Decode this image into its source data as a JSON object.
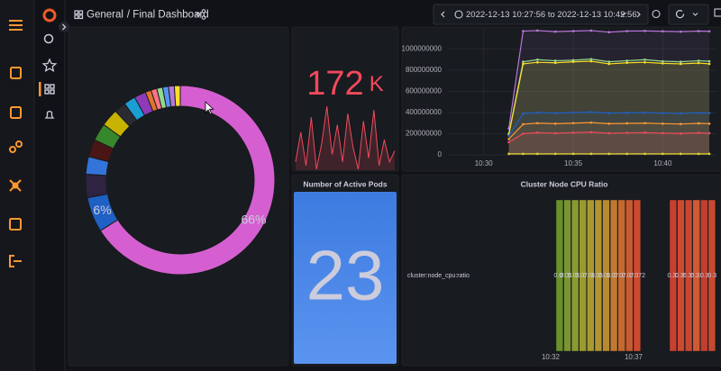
{
  "header": {
    "folder": "General",
    "title": "/ Final Dashboard",
    "time_range": "2022-12-13 10:27:56 to 2022-12-13 10:42:56"
  },
  "donut": {
    "slices": [
      {
        "value": 66,
        "label": "66%",
        "color": "#d55fd0"
      },
      {
        "value": 6,
        "label": "6%",
        "color": "#1f60c4"
      },
      {
        "value": 4,
        "color": "#2e2340"
      },
      {
        "value": 3,
        "color": "#3274d9"
      },
      {
        "value": 3,
        "color": "#4a1515"
      },
      {
        "value": 3,
        "color": "#37872d"
      },
      {
        "value": 3,
        "color": "#c8b400"
      },
      {
        "value": 2,
        "color": "#2a2a30"
      },
      {
        "value": 2,
        "color": "#1a9ed5"
      },
      {
        "value": 2,
        "color": "#8f3bb8"
      },
      {
        "value": 1,
        "color": "#e0752d"
      },
      {
        "value": 1,
        "color": "#ff7383"
      },
      {
        "value": 1,
        "color": "#96d98d"
      },
      {
        "value": 1,
        "color": "#5794f2"
      },
      {
        "value": 1,
        "color": "#b877d9"
      },
      {
        "value": 1,
        "color": "#fade2a"
      }
    ]
  },
  "stat": {
    "value": 172,
    "unit": "K",
    "color": "#f2495c",
    "sparkline": [
      20,
      60,
      15,
      80,
      10,
      45,
      95,
      30,
      70,
      20,
      85,
      40,
      10,
      75,
      25,
      90,
      15,
      50,
      20,
      35
    ]
  },
  "timeseries": {
    "xlim": [
      628,
      643
    ],
    "ylim": [
      0,
      1200000000
    ],
    "yticks": [
      0,
      200000000,
      400000000,
      600000000,
      800000000,
      1000000000
    ],
    "xticks": [
      {
        "value": 630,
        "label": "10:30"
      },
      {
        "value": 635,
        "label": "10:35"
      },
      {
        "value": 640,
        "label": "10:40"
      }
    ],
    "x": [
      631.4,
      632.2,
      633,
      634,
      635,
      636,
      637,
      638,
      639,
      640,
      641,
      642,
      642.6
    ],
    "series": [
      {
        "color": "#b877d9",
        "values": [
          250000000,
          1170000000,
          1175000000,
          1165000000,
          1170000000,
          1175000000,
          1160000000,
          1170000000,
          1172000000,
          1168000000,
          1165000000,
          1170000000,
          1168000000
        ]
      },
      {
        "color": "#96d98d",
        "values": [
          200000000,
          880000000,
          900000000,
          890000000,
          895000000,
          905000000,
          880000000,
          890000000,
          900000000,
          885000000,
          880000000,
          890000000,
          885000000
        ]
      },
      {
        "color": "#fade2a",
        "values": [
          190000000,
          860000000,
          875000000,
          870000000,
          880000000,
          885000000,
          860000000,
          870000000,
          875000000,
          865000000,
          860000000,
          868000000,
          860000000
        ]
      },
      {
        "color": "#1f60c4",
        "values": [
          180000000,
          390000000,
          400000000,
          395000000,
          400000000,
          405000000,
          395000000,
          398000000,
          400000000,
          395000000,
          392000000,
          398000000,
          395000000
        ]
      },
      {
        "color": "#ff9830",
        "values": [
          150000000,
          290000000,
          300000000,
          295000000,
          300000000,
          305000000,
          295000000,
          298000000,
          300000000,
          295000000,
          292000000,
          298000000,
          295000000
        ]
      },
      {
        "color": "#f2495c",
        "values": [
          120000000,
          200000000,
          210000000,
          205000000,
          210000000,
          215000000,
          205000000,
          208000000,
          210000000,
          205000000,
          202000000,
          208000000,
          205000000
        ]
      },
      {
        "color": "#e0d32a",
        "values": [
          10000000,
          10000000,
          10000000,
          10000000,
          10000000,
          10000000,
          10000000,
          10000000,
          10000000,
          10000000,
          10000000,
          10000000,
          10000000
        ]
      }
    ]
  },
  "pods": {
    "title": "Number of Active Pods",
    "value": 23
  },
  "cpu": {
    "title": "Cluster Node CPU Ratio",
    "legend": "cluster:node_cpu:ratio",
    "xticks": [
      "10:32",
      "10:37"
    ],
    "groups": [
      {
        "bars": [
          {
            "label": "0.05",
            "color": "#6a8f2d"
          },
          {
            "label": "0.057",
            "color": "#7a9530"
          },
          {
            "label": "0.058",
            "color": "#8a9a30"
          },
          {
            "label": "0.071",
            "color": "#9a9a30"
          },
          {
            "label": "0.062",
            "color": "#a89a30"
          },
          {
            "label": "0.059",
            "color": "#b09530"
          },
          {
            "label": "0.054",
            "color": "#b88a30"
          },
          {
            "label": "0.077",
            "color": "#c07a30"
          },
          {
            "label": "0.073",
            "color": "#c46a30"
          },
          {
            "label": "0.078",
            "color": "#c85a30"
          },
          {
            "label": "0.072",
            "color": "#cc4a30"
          }
        ]
      },
      {
        "bars": [
          {
            "label": "0.32",
            "color": "#c8402f"
          },
          {
            "label": "0.35",
            "color": "#cc4a30"
          },
          {
            "label": "0.35",
            "color": "#c8452f"
          },
          {
            "label": "0.33",
            "color": "#d05a35"
          },
          {
            "label": "0.3",
            "color": "#c04030"
          },
          {
            "label": "0.3",
            "color": "#c84a30"
          }
        ]
      }
    ]
  }
}
